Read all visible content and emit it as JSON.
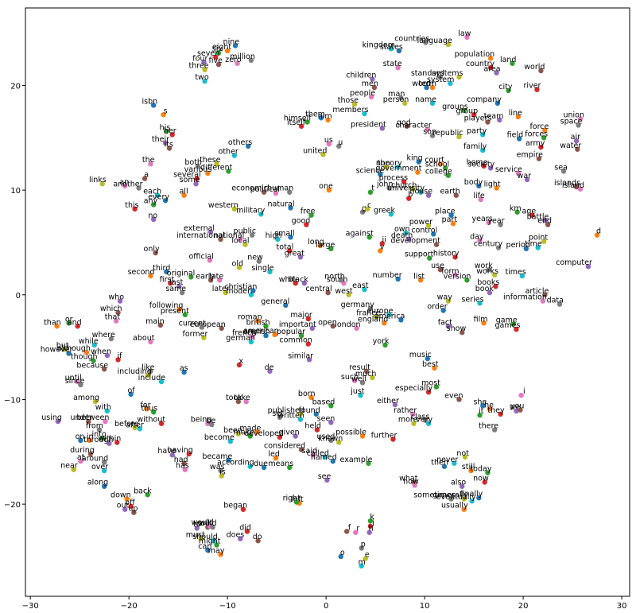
{
  "chart_data": {
    "type": "scatter",
    "xlim": [
      -30.5,
      30.8
    ],
    "ylim": [
      -28.8,
      27.4
    ],
    "xticks": [
      {
        "value": -30,
        "label": "−30"
      },
      {
        "value": -20,
        "label": "−20"
      },
      {
        "value": -10,
        "label": "−10"
      },
      0,
      10,
      20,
      30
    ],
    "yticks": [
      {
        "value": -20,
        "label": "−20"
      },
      {
        "value": -10,
        "label": "−10"
      },
      0,
      10,
      20
    ],
    "colors": [
      "#1f77b4",
      "#ff7f0e",
      "#2ca02c",
      "#d62728",
      "#9467bd",
      "#8c564b",
      "#e377c2",
      "#7f7f7f",
      "#bcbd22",
      "#17becf"
    ],
    "labels": [
      "nine",
      "eight",
      "six",
      "seven",
      "four",
      "five",
      "zero",
      "million",
      "three",
      "two",
      "isbn",
      "s",
      "his",
      "her",
      "their",
      "its",
      "the",
      "both",
      "these",
      "other",
      "others",
      "various",
      "different",
      "several",
      "some",
      "a",
      "an",
      "another",
      "links",
      "each",
      "every",
      "all",
      "any",
      "this",
      "no",
      "economic",
      "political",
      "human",
      "western",
      "military",
      "natural",
      "one",
      "free",
      "good",
      "external",
      "international",
      "national",
      "public",
      "local",
      "high",
      "small",
      "long",
      "large",
      "total",
      "great",
      "only",
      "official",
      "new",
      "old",
      "single",
      "third",
      "second",
      "original",
      "first",
      "last",
      "early",
      "late",
      "same",
      "later",
      "modern",
      "christian",
      "following",
      "present",
      "white",
      "black",
      "central",
      "south",
      "north",
      "west",
      "east",
      "general",
      "roman",
      "british",
      "major",
      "important",
      "european",
      "french",
      "current",
      "former",
      "german",
      "english",
      "american",
      "popular",
      "common",
      "similar",
      "open",
      "london",
      "germany",
      "france",
      "europe",
      "america",
      "england",
      "york",
      "x",
      "de",
      "main",
      "about",
      "like",
      "including",
      "include",
      "as",
      "than",
      "or",
      "and",
      "who",
      "which",
      "that",
      "where",
      "but",
      "while",
      "however",
      "although",
      "though",
      "if",
      "when",
      "because",
      "until",
      "since",
      "among",
      "with",
      "of",
      "for",
      "thus",
      "without",
      "using",
      "under",
      "between",
      "from",
      "before",
      "after",
      "on",
      "in",
      "into",
      "within",
      "through",
      "during",
      "at",
      "around",
      "near",
      "over",
      "along",
      "down",
      "back",
      "off",
      "out",
      "up",
      "being",
      "be",
      "been",
      "become",
      "became",
      "made",
      "make",
      "having",
      "have",
      "had",
      "has",
      "was",
      "is",
      "according",
      "due",
      "led",
      "means",
      "developed",
      "given",
      "took",
      "take",
      "set",
      "published",
      "written",
      "found",
      "born",
      "based",
      "held",
      "seen",
      "considered",
      "said",
      "used",
      "known",
      "called",
      "named",
      "possible",
      "example",
      "further",
      "see",
      "result",
      "such",
      "well",
      "much",
      "just",
      "music",
      "best",
      "most",
      "especially",
      "either",
      "even",
      "rather",
      "class",
      "more",
      "very",
      "she",
      "he",
      "it",
      "they",
      "we",
      "you",
      "i",
      "there",
      "not",
      "never",
      "then",
      "still",
      "today",
      "now",
      "also",
      "what",
      "how",
      "sometimes",
      "generally",
      "eventually",
      "finally",
      "usually",
      "k",
      "j",
      "h",
      "f",
      "r",
      "p",
      "e",
      "m",
      "o",
      "left",
      "right",
      "began",
      "to",
      "will",
      "would",
      "could",
      "must",
      "should",
      "can",
      "may",
      "might",
      "did",
      "does",
      "do",
      "law",
      "countries",
      "language",
      "kingdom",
      "states",
      "population",
      "land",
      "country",
      "area",
      "world",
      "state",
      "standard",
      "systems",
      "system",
      "word",
      "term",
      "city",
      "river",
      "children",
      "men",
      "people",
      "man",
      "person",
      "name",
      "company",
      "line",
      "groups",
      "group",
      "team",
      "players",
      "union",
      "space",
      "those",
      "members",
      "them",
      "him",
      "himself",
      "itself",
      "president",
      "god",
      "character",
      "son",
      "republic",
      "party",
      "field",
      "force",
      "forces",
      "army",
      "air",
      "water",
      "us",
      "u",
      "united",
      "family",
      "king",
      "court",
      "school",
      "home",
      "society",
      "empire",
      "service",
      "sea",
      "non",
      "theory",
      "science",
      "government",
      "college",
      "process",
      "war",
      "islands",
      "island",
      "john",
      "church",
      "university",
      "body",
      "light",
      "t",
      "b",
      "house",
      "earth",
      "life",
      "g",
      "c",
      "greek",
      "place",
      "part",
      "km",
      "age",
      "battle",
      "end",
      "years",
      "year",
      "power",
      "own",
      "control",
      "d",
      "against",
      "ii",
      "death",
      "development",
      "day",
      "century",
      "point",
      "time",
      "period",
      "v",
      "support",
      "history",
      "computer",
      "use",
      "form",
      "work",
      "works",
      "times",
      "number",
      "list",
      "version",
      "books",
      "book",
      "article",
      "information",
      "data",
      "way",
      "series",
      "order",
      "film",
      "game",
      "games",
      "fact",
      "show"
    ],
    "x": [
      -9.2,
      -10,
      -10.9,
      -11.2,
      -12.4,
      -10.9,
      -9,
      -7.6,
      -12.3,
      -12.3,
      -17.5,
      -16.5,
      -16.2,
      -15.6,
      -16.3,
      -15.9,
      -17.8,
      -13,
      -11.1,
      -9.3,
      -7.9,
      -12,
      -9.9,
      -13.1,
      -13.2,
      -18.4,
      -20.4,
      -19,
      -22.7,
      -17.1,
      -16.3,
      -14.4,
      -17.5,
      -19.4,
      -17.5,
      -6.3,
      -5.1,
      -3.7,
      -9.3,
      -6.6,
      -3.6,
      0.3,
      -1.5,
      -2,
      -11.7,
      -10.7,
      -8.7,
      -7.5,
      -8.2,
      -4.9,
      -3.6,
      -0.6,
      0.5,
      -3.7,
      -2.6,
      -17.3,
      -11.8,
      -6.8,
      -8.8,
      -5.7,
      -16.2,
      -17.8,
      -13.7,
      -15.8,
      -14.9,
      -11.7,
      -10.8,
      -14.6,
      -10.2,
      -7.6,
      -7.4,
      -14.9,
      -14.3,
      -3.1,
      -2.2,
      0.2,
      1.8,
      1.5,
      2.3,
      3.9,
      -4.1,
      -6.9,
      -6.1,
      -1.8,
      -1.4,
      -10.6,
      -7.5,
      -12.6,
      -12.4,
      -7.6,
      -6.1,
      -5.2,
      -2.5,
      -1.8,
      -1.7,
      0.7,
      3.1,
      4.5,
      5.1,
      6.4,
      7.6,
      5.9,
      6,
      -8.8,
      -5.7,
      -16.8,
      -17.8,
      -17.8,
      -18.1,
      -16.7,
      -14.4,
      -27.3,
      -26.1,
      -25.2,
      -20.9,
      -21.1,
      -21.3,
      -21.8,
      -26.5,
      -23.5,
      -26.1,
      -24.3,
      -23.6,
      -21.1,
      -22.2,
      -22.5,
      -25.2,
      -24.9,
      -23.4,
      -22.2,
      -19.8,
      -18.2,
      -17.5,
      -16.7,
      -27.2,
      -24.1,
      -22.4,
      -23,
      -19.4,
      -18.9,
      -24.9,
      -24,
      -22.7,
      -21.2,
      -22,
      -23.9,
      -24.9,
      -22.5,
      -25.6,
      -22.5,
      -22.5,
      -20.2,
      -18.1,
      -19.8,
      -20.4,
      -19.5,
      -12,
      -11.6,
      -8.9,
      -9.7,
      -9.9,
      -7,
      -7.7,
      -13.9,
      -15.6,
      -14.4,
      -14.3,
      -10.7,
      -10.6,
      -7.7,
      -6.3,
      -5.1,
      -3.7,
      -4.7,
      -3.1,
      -8.9,
      -8.1,
      -4.7,
      -2.6,
      -2.6,
      -1,
      -1.5,
      0.5,
      -0.9,
      0.5,
      -2.5,
      -1.3,
      0.5,
      1.3,
      -0.1,
      0.7,
      3.7,
      4.3,
      6.8,
      0.1,
      4.1,
      2.9,
      3.7,
      4.7,
      3.5,
      10.3,
      11,
      11.2,
      10.4,
      7,
      13.5,
      8.8,
      10.1,
      8.9,
      10.4,
      15.9,
      16.6,
      15.6,
      17.7,
      19.3,
      19.7,
      19.8,
      17.1,
      14.1,
      13,
      12,
      14.7,
      16.4,
      16.1,
      13.8,
      8.9,
      9,
      12.7,
      14,
      14.8,
      15.5,
      14,
      4.5,
      4.5,
      4.4,
      2.1,
      3,
      3.6,
      4,
      3.6,
      1.5,
      -2.7,
      -3,
      -8.4,
      -13.1,
      -12,
      -11.8,
      -11.5,
      -12.7,
      -11.4,
      -12,
      -10.7,
      -11.1,
      -8,
      -8.7,
      -6.9,
      14.3,
      10.1,
      12.4,
      6.6,
      7.4,
      16.7,
      18.9,
      16.7,
      17.3,
      21.8,
      7.3,
      11.6,
      13.5,
      12.6,
      10.2,
      10.8,
      18.5,
      21.4,
      4.7,
      4.9,
      4.6,
      7.6,
      8,
      10.8,
      17.4,
      19.5,
      14,
      15,
      17.6,
      16.4,
      25.8,
      25.6,
      2.9,
      3.9,
      -0.5,
      0.2,
      -1.9,
      -2.5,
      5.7,
      8.2,
      10.3,
      10.8,
      13.5,
      15.9,
      19.6,
      22.2,
      22.1,
      21.8,
      25.4,
      25.5,
      0.3,
      1.3,
      -0.3,
      15.9,
      9.4,
      11.6,
      12.1,
      16,
      16.7,
      21.6,
      19.5,
      24.1,
      6.1,
      7.3,
      5.5,
      9.3,
      12.4,
      7.9,
      20.4,
      25.4,
      25.8,
      6.4,
      8.8,
      9.6,
      15.5,
      17.3,
      4.5,
      8.4,
      10.4,
      13.2,
      15.7,
      3.7,
      4.2,
      6.6,
      12.7,
      12.9,
      19.4,
      20.9,
      22.2,
      22.5,
      16.5,
      17.7,
      10.4,
      8.1,
      10.9,
      27.5,
      4.4,
      5.7,
      8.4,
      11.2,
      15.6,
      17.5,
      22.1,
      21.5,
      20.3,
      5.5,
      10.5,
      13.1,
      26.6,
      11.6,
      13.1,
      16.5,
      17.1,
      19.9,
      7.3,
      9.6,
      14.3,
      17.2,
      16.6,
      22.2,
      22,
      23.7,
      12.4,
      15.6,
      11.9,
      16,
      19,
      19.3,
      12.4,
      13.8
    ],
    "values": [
      23.8,
      23.3,
      23.1,
      22.7,
      22.2,
      22,
      22.1,
      22.4,
      21.5,
      20.4,
      18.1,
      17.2,
      15.6,
      15.3,
      14.5,
      14,
      12.5,
      12.3,
      12.5,
      13.3,
      14.2,
      11.6,
      11.8,
      11.1,
      10.6,
      11.1,
      10.4,
      10.2,
      10.6,
      9.5,
      9,
      9.5,
      8.6,
      8.2,
      7.2,
      9.8,
      9.7,
      9.8,
      8.2,
      7.7,
      8.3,
      10,
      7.6,
      6.7,
      6,
      5.3,
      5.3,
      5.7,
      4.8,
      5.3,
      5.5,
      4.7,
      4.4,
      4.2,
      3.6,
      4,
      3.3,
      3.2,
      2.6,
      2.2,
      2.2,
      1.8,
      1.7,
      1.1,
      0.8,
      1.4,
      1.4,
      0.2,
      0.2,
      0,
      0.4,
      -1.4,
      -1.9,
      1.1,
      1.1,
      0.2,
      1.1,
      1.4,
      0,
      0.5,
      -1,
      -2.5,
      -3,
      -2.3,
      -3.2,
      -3.2,
      -4,
      -3.1,
      -4.1,
      -4.5,
      -3.9,
      -3.8,
      -3.9,
      -4.7,
      -6.2,
      -3,
      -3.2,
      -1.3,
      -2.1,
      -1.9,
      -2.4,
      -2.7,
      -4.8,
      -6.7,
      -7.3,
      -2.9,
      -4.5,
      -7.3,
      -7.7,
      -8.3,
      -7.4,
      -3,
      -2.7,
      -3,
      -0.6,
      -1.7,
      -2.5,
      -4.2,
      -5.2,
      -4.8,
      -5.6,
      -5.5,
      -6.3,
      -6.2,
      -5.8,
      -7.1,
      -8.3,
      -8.6,
      -10.2,
      -11.1,
      -9.5,
      -10.9,
      -11.2,
      -12.3,
      -12.1,
      -12.1,
      -12.1,
      -12.9,
      -12.7,
      -12.8,
      -13.9,
      -13.9,
      -13.7,
      -14.1,
      -14.2,
      -15.2,
      -15.9,
      -16,
      -16.7,
      -16.8,
      -18.3,
      -19.5,
      -19.1,
      -20.2,
      -20.5,
      -20.8,
      -12.3,
      -12.4,
      -13.3,
      -14,
      -15.8,
      -13.1,
      -13.5,
      -15.2,
      -15.3,
      -16.1,
      -16.7,
      -16.8,
      -17.3,
      -16.4,
      -16.5,
      -15.6,
      -16.5,
      -13.6,
      -13.5,
      -10.2,
      -10.2,
      -11.7,
      -11.4,
      -11.9,
      -11.4,
      -9.8,
      -10.6,
      -12.9,
      -12.2,
      -14.8,
      -15.3,
      -13.9,
      -14.1,
      -15.5,
      -15.9,
      -13.5,
      -16.1,
      -13.8,
      -17.7,
      -7.3,
      -8.2,
      -8.4,
      -7.9,
      -9.6,
      -6.1,
      -7,
      -8.8,
      -9.3,
      -10.5,
      -10,
      -11.4,
      -12,
      -12.3,
      -12.3,
      -10.6,
      -10.9,
      -11.5,
      -11.4,
      -11.1,
      -11,
      -9.6,
      -12.9,
      -15.5,
      -16.1,
      -16.4,
      -16.8,
      -17,
      -17.9,
      -18.3,
      -17.9,
      -18.2,
      -19.5,
      -19.5,
      -19.7,
      -19.4,
      -20.5,
      -21.6,
      -22.1,
      -22.7,
      -22.6,
      -22.7,
      -24.2,
      -25.2,
      -25.9,
      -25,
      -19.9,
      -19.8,
      -20.5,
      -22.3,
      -22.2,
      -22.1,
      -22.2,
      -23.3,
      -23.5,
      -24.4,
      -24.8,
      -23.9,
      -22.6,
      -23.3,
      -23.5,
      24.6,
      24.1,
      23.9,
      23.5,
      23.3,
      22.6,
      22.1,
      21.7,
      21.2,
      21.4,
      21.7,
      20.8,
      20.8,
      20.2,
      19.8,
      19.8,
      19.5,
      19.6,
      20.6,
      19.8,
      18.9,
      18.8,
      18.3,
      18.3,
      18.3,
      17,
      17.6,
      17.2,
      16.7,
      16.5,
      16.8,
      16.2,
      18.2,
      17.3,
      16.9,
      16.7,
      16.5,
      16.1,
      15.9,
      16.1,
      15.8,
      15.2,
      15.1,
      15.3,
      14.9,
      15.7,
      15,
      14.1,
      14.7,
      13.9,
      14.4,
      14.2,
      13.4,
      13.8,
      12.7,
      12.5,
      12.1,
      12.3,
      12.1,
      13,
      11.6,
      11.8,
      12.2,
      12.2,
      11.5,
      11.7,
      11.4,
      10.8,
      11,
      10.3,
      10.1,
      10.2,
      10.1,
      9.8,
      10.4,
      10.2,
      9.8,
      9.2,
      9.5,
      9.5,
      9.1,
      7.9,
      8.2,
      7.7,
      7.6,
      6.8,
      7.9,
      7.6,
      7.1,
      6.7,
      6.9,
      6.7,
      6.6,
      5.9,
      5.8,
      5.7,
      5.5,
      4.9,
      5.3,
      4.8,
      5.2,
      4.5,
      5.1,
      4.5,
      4.4,
      4.2,
      3.5,
      3.6,
      2.7,
      2.4,
      1.9,
      2.4,
      1.9,
      1.8,
      1.5,
      1.4,
      1.4,
      0.8,
      0.2,
      0,
      -0.6,
      -0.9,
      -0.6,
      -0.8,
      -1.5,
      -2.7,
      -2.8,
      -3.3,
      -3,
      -3.6
    ]
  }
}
